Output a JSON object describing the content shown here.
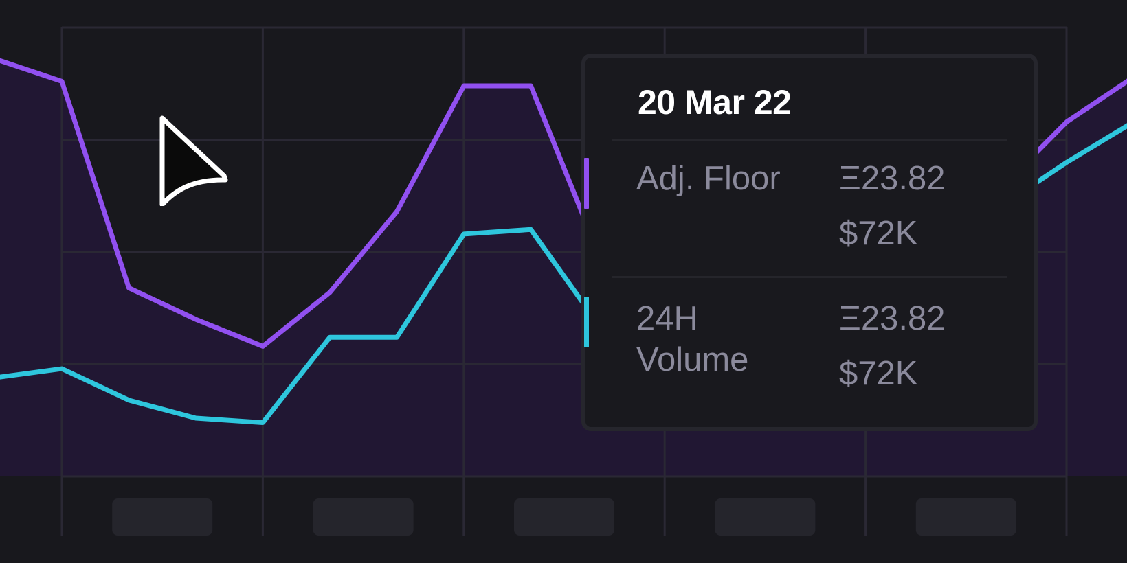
{
  "chart_data": {
    "type": "area",
    "title": "",
    "xlabel": "",
    "ylabel": "",
    "grid": true,
    "x_tick_labels_visible": false,
    "legend": "none",
    "ylim": [
      0,
      100
    ],
    "x": [
      -1,
      0,
      1,
      2,
      3,
      4,
      5,
      6,
      7,
      8,
      9,
      10,
      11,
      12,
      13,
      14,
      15,
      16
    ],
    "series": [
      {
        "color": "#9150f0",
        "fill": "#211733",
        "values": [
          93,
          88,
          42,
          35,
          29,
          41,
          59,
          87,
          87,
          50,
          48,
          47,
          46,
          48,
          55,
          64,
          79,
          89
        ]
      },
      {
        "color": "#2ec6dd",
        "values": [
          22,
          24,
          17,
          13,
          12,
          31,
          31,
          54,
          55,
          34,
          38,
          40,
          41,
          45,
          52,
          60,
          70,
          79
        ]
      }
    ]
  },
  "tooltip": {
    "date": "20 Mar 22",
    "rows": [
      {
        "label_lines": [
          "Adj. Floor"
        ],
        "eth": "Ξ23.82",
        "usd": "$72K",
        "color": "#9150f0"
      },
      {
        "label_lines": [
          "24H",
          "Volume"
        ],
        "eth": "Ξ23.82",
        "usd": "$72K",
        "color": "#2ec6dd"
      }
    ]
  },
  "cursor_icon": "arrow-pointer-icon"
}
